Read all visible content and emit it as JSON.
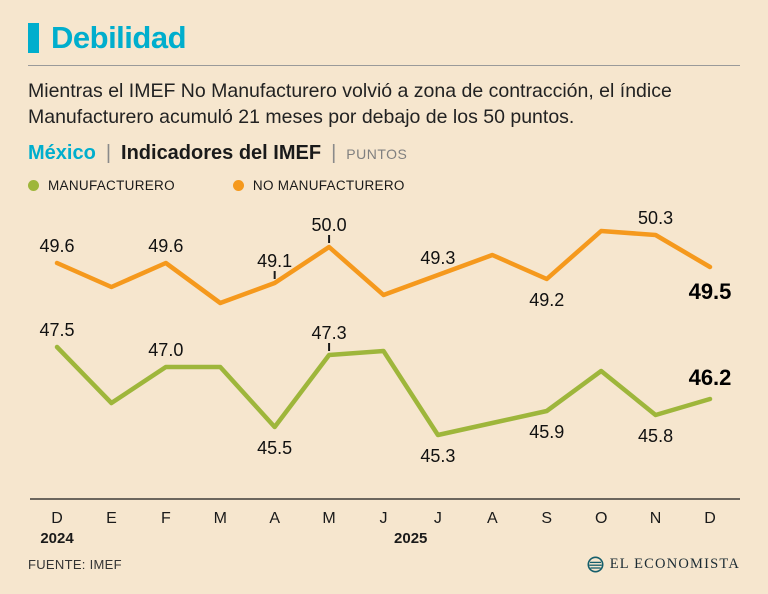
{
  "header": {
    "title": "Debilidad",
    "subtitle": "Mientras el IMEF No Manufacturero volvió a zona de contracción, el índice Manufacturero acumuló 21 meses por debajo de los 50 puntos."
  },
  "kicker": {
    "region": "México",
    "title": "Indicadores del IMEF",
    "unit": "PUNTOS",
    "separator": "|"
  },
  "legend": [
    {
      "label": "MANUFACTURERO",
      "color": "#9EB63B"
    },
    {
      "label": "NO MANUFACTURERO",
      "color": "#F5991D"
    }
  ],
  "footer": {
    "source": "FUENTE: IMEF",
    "brand": "EL ECONOMISTA"
  },
  "colors": {
    "background": "#F6E6CE",
    "accent": "#00AECD",
    "green": "#9EB63B",
    "orange": "#F5991D",
    "text": "#1A1A1A"
  },
  "chart_data": {
    "type": "line",
    "title": "Indicadores del IMEF",
    "ylabel": "PUNTOS",
    "grid": false,
    "legend_position": "top",
    "ylim": [
      45.0,
      50.8
    ],
    "categories": [
      "D",
      "E",
      "F",
      "M",
      "A",
      "M",
      "J",
      "J",
      "A",
      "S",
      "O",
      "N",
      "D"
    ],
    "year_labels": [
      {
        "text": "2024",
        "index": 0
      },
      {
        "text": "2025",
        "index": 6.5
      }
    ],
    "series": [
      {
        "name": "NO MANUFACTURERO",
        "color": "#F5991D",
        "values": [
          49.6,
          49.0,
          49.6,
          48.6,
          49.1,
          50.0,
          48.8,
          49.3,
          49.8,
          49.2,
          50.4,
          50.3,
          49.5
        ],
        "labels": [
          {
            "index": 0,
            "text": "49.6",
            "position": "above"
          },
          {
            "index": 2,
            "text": "49.6",
            "position": "above"
          },
          {
            "index": 4,
            "text": "49.1",
            "position": "above",
            "tick": true
          },
          {
            "index": 5,
            "text": "50.0",
            "position": "above",
            "tick": true
          },
          {
            "index": 7,
            "text": "49.3",
            "position": "above"
          },
          {
            "index": 9,
            "text": "49.2",
            "position": "below"
          },
          {
            "index": 11,
            "text": "50.3",
            "position": "above"
          },
          {
            "index": 12,
            "text": "49.5",
            "position": "below",
            "bold": true
          }
        ]
      },
      {
        "name": "MANUFACTURERO",
        "color": "#9EB63B",
        "values": [
          47.5,
          46.1,
          47.0,
          47.0,
          45.5,
          47.3,
          47.4,
          45.3,
          45.6,
          45.9,
          46.9,
          45.8,
          46.2
        ],
        "labels": [
          {
            "index": 0,
            "text": "47.5",
            "position": "above"
          },
          {
            "index": 2,
            "text": "47.0",
            "position": "above"
          },
          {
            "index": 4,
            "text": "45.5",
            "position": "below"
          },
          {
            "index": 5,
            "text": "47.3",
            "position": "above",
            "tick": true
          },
          {
            "index": 7,
            "text": "45.3",
            "position": "below"
          },
          {
            "index": 9,
            "text": "45.9",
            "position": "below"
          },
          {
            "index": 11,
            "text": "45.8",
            "position": "below"
          },
          {
            "index": 12,
            "text": "46.2",
            "position": "above",
            "bold": true
          }
        ]
      }
    ]
  }
}
